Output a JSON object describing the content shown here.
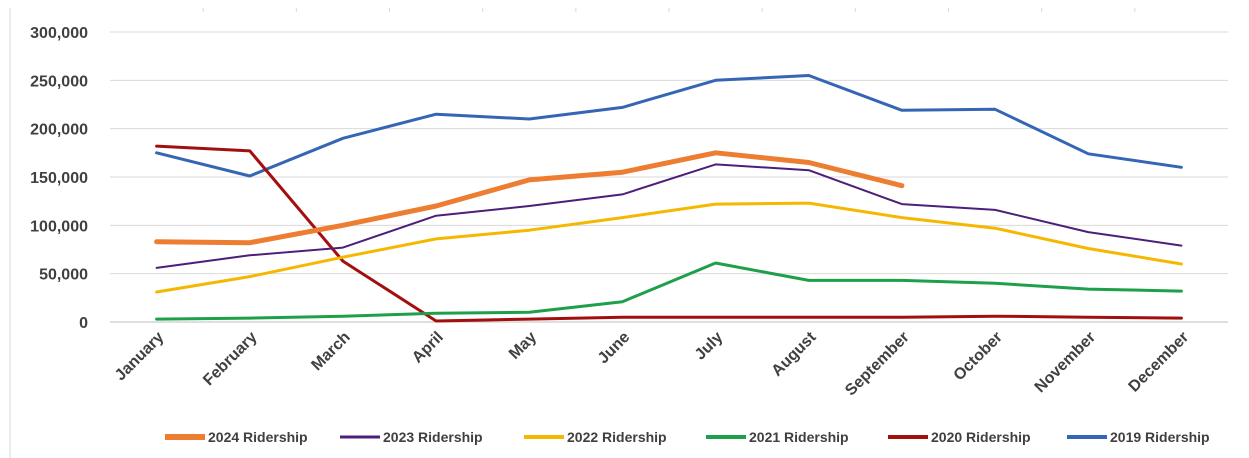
{
  "chart_data": {
    "type": "line",
    "categories": [
      "January",
      "February",
      "March",
      "April",
      "May",
      "June",
      "July",
      "August",
      "September",
      "October",
      "November",
      "December"
    ],
    "ylim": [
      0,
      300000
    ],
    "yticks": [
      0,
      50000,
      100000,
      150000,
      200000,
      250000,
      300000
    ],
    "ytick_labels": [
      "0",
      "50,000",
      "100,000",
      "150,000",
      "200,000",
      "250,000",
      "300,000"
    ],
    "grid": true,
    "legend_position": "bottom",
    "series": [
      {
        "name": "2024 Ridership",
        "color": "#ED7D31",
        "width": 5,
        "values": [
          83000,
          82000,
          100000,
          120000,
          147000,
          155000,
          175000,
          165000,
          141000,
          null,
          null,
          null
        ]
      },
      {
        "name": "2023 Ridership",
        "color": "#4B1F7A",
        "width": 2,
        "values": [
          56000,
          69000,
          77000,
          110000,
          120000,
          132000,
          163000,
          157000,
          122000,
          116000,
          93000,
          79000
        ]
      },
      {
        "name": "2022 Ridership",
        "color": "#F5B800",
        "width": 3,
        "values": [
          31000,
          47000,
          67000,
          86000,
          95000,
          108000,
          122000,
          123000,
          108000,
          97000,
          76000,
          60000
        ]
      },
      {
        "name": "2021 Ridership",
        "color": "#1EA04A",
        "width": 3,
        "values": [
          3000,
          4000,
          6000,
          9000,
          10000,
          21000,
          61000,
          43000,
          43000,
          40000,
          34000,
          32000
        ]
      },
      {
        "name": "2020 Ridership",
        "color": "#A30F0F",
        "width": 3,
        "values": [
          182000,
          177000,
          63000,
          1000,
          3000,
          5000,
          5000,
          5000,
          5000,
          6000,
          5000,
          4000
        ]
      },
      {
        "name": "2019 Ridership",
        "color": "#3565B5",
        "width": 3,
        "values": [
          175000,
          151000,
          190000,
          215000,
          210000,
          222000,
          250000,
          255000,
          219000,
          220000,
          174000,
          160000
        ]
      }
    ]
  }
}
